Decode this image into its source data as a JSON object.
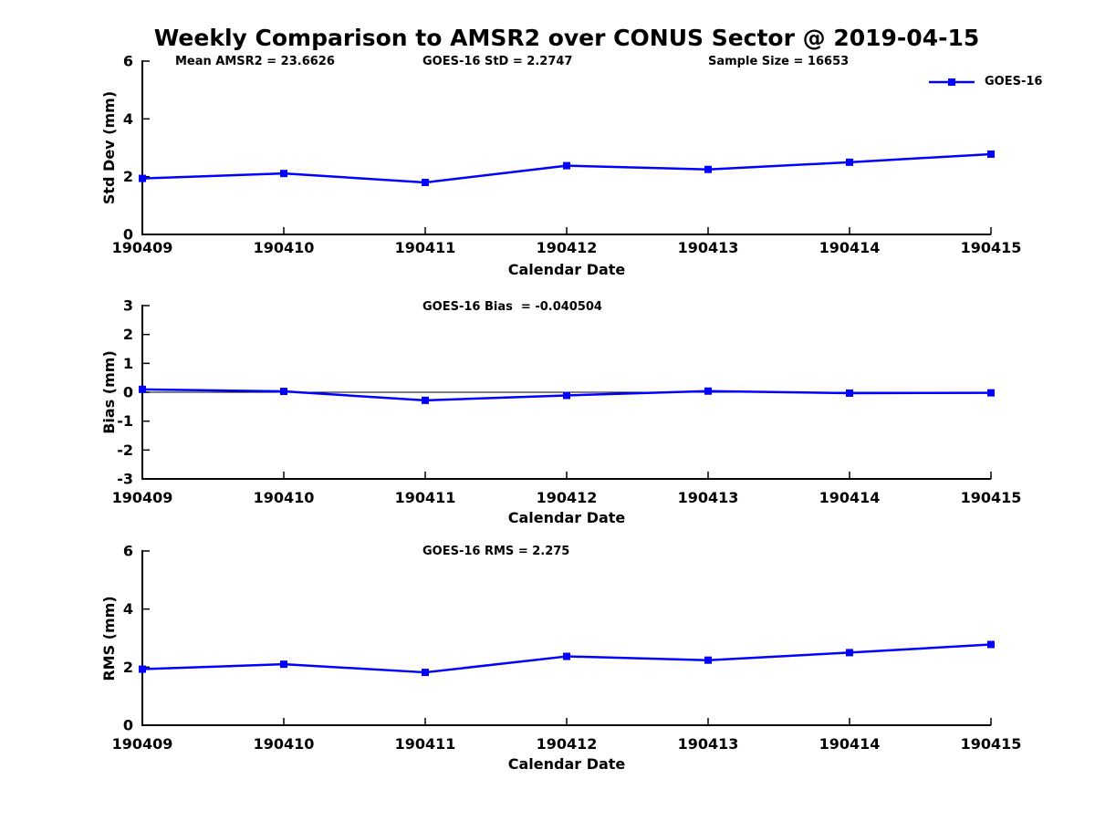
{
  "title": "Weekly Comparison to AMSR2 over CONUS Sector @ 2019-04-15",
  "colors": {
    "series": "#0000ff",
    "axis": "#000000",
    "text": "#000000",
    "background": "#ffffff"
  },
  "chart_data": [
    {
      "type": "line",
      "id": "std-dev",
      "ylabel": "Std Dev (mm)",
      "xlabel": "Calendar Date",
      "x": [
        "190409",
        "190410",
        "190411",
        "190412",
        "190413",
        "190414",
        "190415"
      ],
      "series": [
        {
          "name": "GOES-16",
          "marker": "square",
          "values": [
            1.94,
            2.11,
            1.8,
            2.38,
            2.25,
            2.5,
            2.78
          ]
        }
      ],
      "ylim": [
        0,
        6
      ],
      "yticks": [
        0,
        2,
        4,
        6
      ],
      "grid": false,
      "legend_position": "top-right",
      "annotations": [
        {
          "text": "Mean AMSR2 = 23.6626"
        },
        {
          "text": "GOES-16 StD = 2.2747"
        },
        {
          "text": "Sample Size = 16653"
        }
      ]
    },
    {
      "type": "line",
      "id": "bias",
      "ylabel": "Bias (mm)",
      "xlabel": "Calendar Date",
      "x": [
        "190409",
        "190410",
        "190411",
        "190412",
        "190413",
        "190414",
        "190415"
      ],
      "series": [
        {
          "name": "GOES-16",
          "marker": "square",
          "values": [
            0.1,
            0.03,
            -0.28,
            -0.11,
            0.04,
            -0.03,
            -0.02
          ]
        }
      ],
      "ylim": [
        -3,
        3
      ],
      "yticks": [
        -3,
        -2,
        -1,
        0,
        1,
        2,
        3
      ],
      "zero_line": true,
      "grid": false,
      "annotations": [
        {
          "text": "GOES-16 Bias  = -0.040504"
        }
      ]
    },
    {
      "type": "line",
      "id": "rms",
      "ylabel": "RMS (mm)",
      "xlabel": "Calendar Date",
      "x": [
        "190409",
        "190410",
        "190411",
        "190412",
        "190413",
        "190414",
        "190415"
      ],
      "series": [
        {
          "name": "GOES-16",
          "marker": "square",
          "values": [
            1.93,
            2.1,
            1.82,
            2.37,
            2.24,
            2.5,
            2.78
          ]
        }
      ],
      "ylim": [
        0,
        6
      ],
      "yticks": [
        0,
        2,
        4,
        6
      ],
      "grid": false,
      "annotations": [
        {
          "text": "GOES-16 RMS = 2.275"
        }
      ]
    }
  ]
}
